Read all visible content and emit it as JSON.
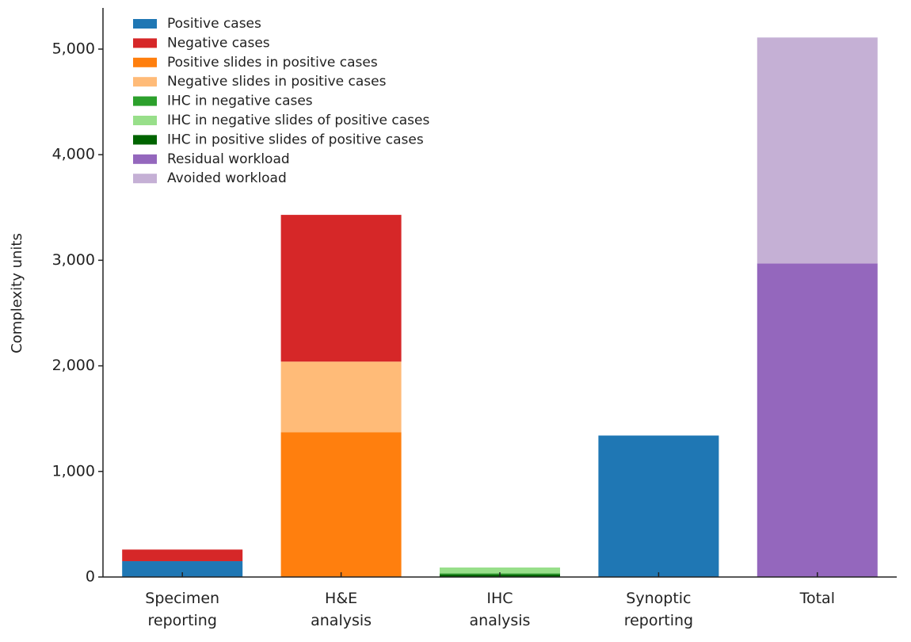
{
  "chart_data": {
    "type": "stacked_bar",
    "y_label": "Complexity units",
    "categories": [
      "Specimen reporting",
      "H&E analysis",
      "IHC analysis",
      "Synoptic reporting",
      "Total"
    ],
    "series": [
      {
        "name": "Positive cases",
        "color": "#1f77b4",
        "values": [
          150,
          0,
          0,
          1340,
          0
        ]
      },
      {
        "name": "Negative cases",
        "color": "#d62728",
        "values": [
          110,
          1390,
          0,
          0,
          0
        ]
      },
      {
        "name": "Positive slides in positive cases",
        "color": "#ff7f0e",
        "values": [
          0,
          1370,
          0,
          0,
          0
        ]
      },
      {
        "name": "Negative slides in positive cases",
        "color": "#ffbb78",
        "values": [
          0,
          670,
          0,
          0,
          0
        ]
      },
      {
        "name": "IHC in negative cases",
        "color": "#2ca02c",
        "values": [
          0,
          0,
          10,
          0,
          0
        ]
      },
      {
        "name": "IHC in negative slides of positive cases",
        "color": "#98df8a",
        "values": [
          0,
          0,
          55,
          0,
          0
        ]
      },
      {
        "name": "IHC in positive slides of positive cases",
        "color": "#006400",
        "values": [
          0,
          0,
          25,
          0,
          0
        ]
      },
      {
        "name": "Residual workload",
        "color": "#9467bd",
        "values": [
          0,
          0,
          0,
          0,
          2970
        ]
      },
      {
        "name": "Avoided workload",
        "color": "#c5b0d5",
        "values": [
          0,
          0,
          0,
          0,
          2140
        ]
      }
    ],
    "ylim": [
      0,
      5390
    ],
    "yticks": [
      0,
      {
        "value": 1000,
        "label": "1,000"
      },
      {
        "value": 2000,
        "label": "2,000"
      },
      {
        "value": 3000,
        "label": "3,000"
      },
      {
        "value": 4000,
        "label": "4,000"
      },
      {
        "value": 5000,
        "label": "5,000"
      }
    ],
    "legend": "upper left"
  }
}
